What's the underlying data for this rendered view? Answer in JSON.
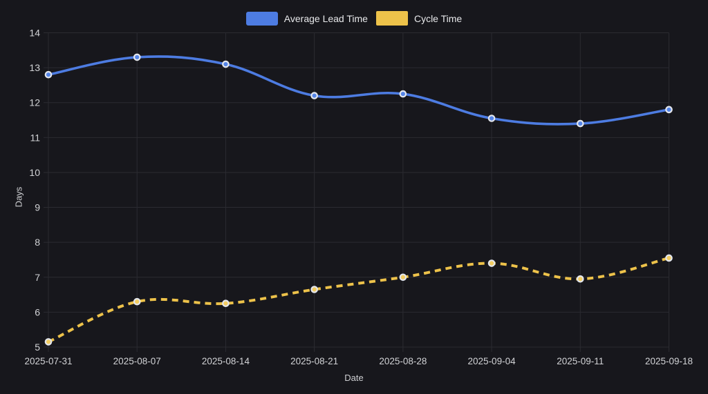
{
  "chart_data": {
    "type": "line",
    "categories": [
      "2025-07-31",
      "2025-08-07",
      "2025-08-14",
      "2025-08-21",
      "2025-08-28",
      "2025-09-04",
      "2025-09-11",
      "2025-09-18"
    ],
    "series": [
      {
        "name": "Average Lead Time",
        "values": [
          12.8,
          13.3,
          13.1,
          12.2,
          12.25,
          11.55,
          11.4,
          11.8
        ],
        "color": "#4d7ce2",
        "point_fill": "#5585e8",
        "style": "solid"
      },
      {
        "name": "Cycle Time",
        "values": [
          5.15,
          6.3,
          6.25,
          6.65,
          7.0,
          7.4,
          6.95,
          7.55
        ],
        "color": "#edc24a",
        "point_fill": "#f3cd62",
        "style": "dashed"
      }
    ],
    "title": "",
    "xlabel": "Date",
    "ylabel": "Days",
    "ylim": [
      5,
      14
    ],
    "yticks": [
      5,
      6,
      7,
      8,
      9,
      10,
      11,
      12,
      13,
      14
    ],
    "grid": true,
    "legend_position": "top",
    "colors": {
      "background": "#17171c",
      "gridline": "#2b2b31",
      "tick_text": "#d2d3d6",
      "axis_title_text": "#cfd0d3",
      "legend_text": "#e8e9eb",
      "point_ring": "#e3e6ec"
    }
  }
}
